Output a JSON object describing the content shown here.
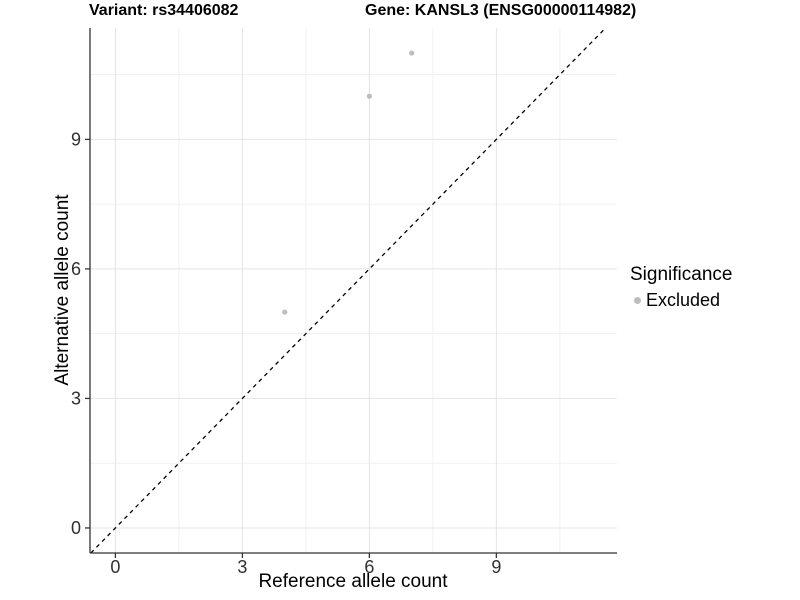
{
  "title": {
    "variant": "Variant: rs34406082",
    "gene": "Gene: KANSL3 (ENSG00000114982)"
  },
  "legend": {
    "title": "Significance",
    "items": [
      {
        "label": "Excluded",
        "color": "#bdbdbd"
      }
    ]
  },
  "chart_data": {
    "type": "scatter",
    "title": "Variant: rs34406082    Gene: KANSL3 (ENSG00000114982)",
    "xlabel": "Reference allele count",
    "ylabel": "Alternative allele count",
    "x_ticks": [
      0,
      3,
      6,
      9
    ],
    "y_ticks": [
      0,
      3,
      6,
      9
    ],
    "x_minor_ticks": [
      1.5,
      4.5,
      7.5,
      10.5
    ],
    "y_minor_ticks": [
      1.5,
      4.5,
      7.5,
      10.5
    ],
    "xlim": [
      -0.6,
      11.85
    ],
    "ylim": [
      -0.58,
      11.58
    ],
    "grid": true,
    "legend_position": "right",
    "series": [
      {
        "name": "Excluded",
        "color": "#bdbdbd",
        "points": [
          {
            "x": 4,
            "y": 5
          },
          {
            "x": 6,
            "y": 10
          },
          {
            "x": 7,
            "y": 11
          }
        ]
      }
    ],
    "reference_line": {
      "type": "identity",
      "slope": 1,
      "intercept": 0,
      "style": "dashed",
      "color": "#000000"
    },
    "colors": {
      "grid_major": "#e4e4e4",
      "grid_minor": "#f1f1f1",
      "axis_line": "#333333",
      "tick_label": "#303030",
      "point": "#bdbdbd",
      "background": "#ffffff"
    }
  }
}
